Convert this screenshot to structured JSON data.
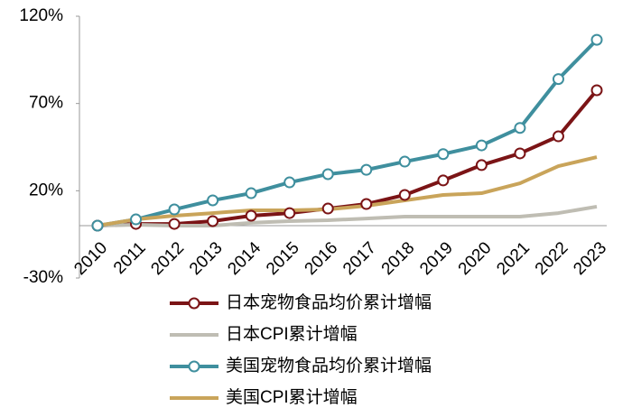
{
  "chart_data": {
    "type": "line",
    "x": [
      "2010",
      "2011",
      "2012",
      "2013",
      "2014",
      "2015",
      "2016",
      "2017",
      "2018",
      "2019",
      "2020",
      "2021",
      "2022",
      "2023"
    ],
    "series": [
      {
        "name": "日本宠物食品均价累计增幅",
        "color": "#7b1416",
        "marker": true,
        "values": [
          0,
          1,
          1,
          2.6,
          5.7,
          7.2,
          9.8,
          12.4,
          17.6,
          25.9,
          34.7,
          41.4,
          51.2,
          77.6
        ]
      },
      {
        "name": "日本CPI累计增幅",
        "color": "#bfbdb3",
        "marker": false,
        "values": [
          0,
          0.5,
          0,
          0,
          1.6,
          2.6,
          3.1,
          4.1,
          5.2,
          5.2,
          5.2,
          5.2,
          7.2,
          10.9
        ]
      },
      {
        "name": "美国宠物食品均价累计增幅",
        "color": "#3f8f9e",
        "marker": true,
        "values": [
          0,
          3.6,
          9.3,
          14.5,
          18.6,
          24.8,
          29.5,
          32,
          36.7,
          41,
          46,
          56,
          84,
          106.5
        ]
      },
      {
        "name": "美国CPI累计增幅",
        "color": "#c9a45a",
        "marker": false,
        "values": [
          0,
          3.6,
          5.7,
          7.2,
          8.8,
          8.8,
          9.3,
          11.4,
          14.5,
          17.6,
          18.6,
          24.3,
          34.1,
          39.3
        ]
      }
    ],
    "ylim": [
      -30,
      120
    ],
    "yticks": [
      {
        "value": -30,
        "label": "-30%"
      },
      {
        "value": 20,
        "label": "20%"
      },
      {
        "value": 70,
        "label": "70%"
      },
      {
        "value": 120,
        "label": "120%"
      }
    ],
    "grid": false
  }
}
